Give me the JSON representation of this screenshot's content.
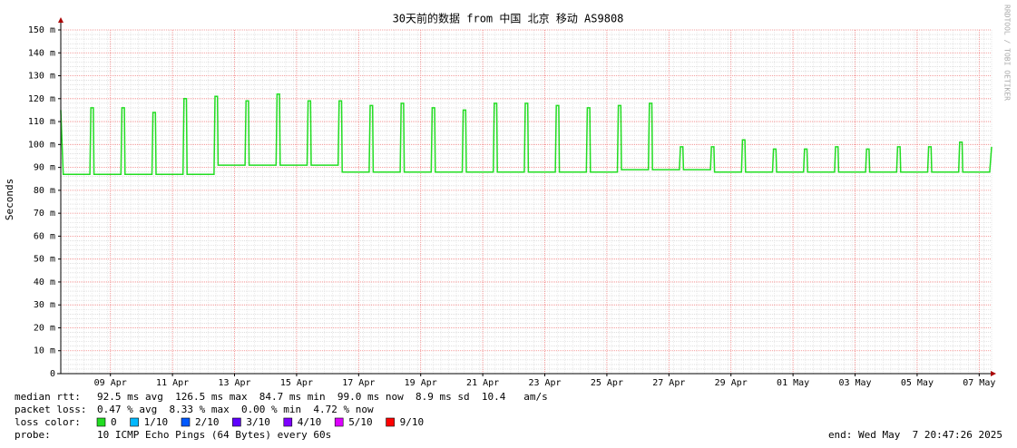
{
  "chart_data": {
    "type": "line",
    "title": "30天前的数据 from 中国 北京 移动 AS9808",
    "y_label": "Seconds",
    "watermark": "RRDTOOL / TOBI OETIKER",
    "xlim": [
      0,
      30
    ],
    "ylim": [
      0,
      0.15
    ],
    "grid": true,
    "yticks": [
      0,
      {
        "value": 0.01,
        "label": "10 m"
      },
      {
        "value": 0.02,
        "label": "20 m"
      },
      {
        "value": 0.03,
        "label": "30 m"
      },
      {
        "value": 0.04,
        "label": "40 m"
      },
      {
        "value": 0.05,
        "label": "50 m"
      },
      {
        "value": 0.06,
        "label": "60 m"
      },
      {
        "value": 0.07,
        "label": "70 m"
      },
      {
        "value": 0.08,
        "label": "80 m"
      },
      {
        "value": 0.09,
        "label": "90 m"
      },
      {
        "value": 0.1,
        "label": "100 m"
      },
      {
        "value": 0.11,
        "label": "110 m"
      },
      {
        "value": 0.12,
        "label": "120 m"
      },
      {
        "value": 0.13,
        "label": "130 m"
      },
      {
        "value": 0.14,
        "label": "140 m"
      },
      {
        "value": 0.15,
        "label": "150 m"
      }
    ],
    "xticks": [
      {
        "value": 1.6,
        "label": "09 Apr"
      },
      {
        "value": 3.6,
        "label": "11 Apr"
      },
      {
        "value": 5.6,
        "label": "13 Apr"
      },
      {
        "value": 7.6,
        "label": "15 Apr"
      },
      {
        "value": 9.6,
        "label": "17 Apr"
      },
      {
        "value": 11.6,
        "label": "19 Apr"
      },
      {
        "value": 13.6,
        "label": "21 Apr"
      },
      {
        "value": 15.6,
        "label": "23 Apr"
      },
      {
        "value": 17.6,
        "label": "25 Apr"
      },
      {
        "value": 19.6,
        "label": "27 Apr"
      },
      {
        "value": 21.6,
        "label": "29 Apr"
      },
      {
        "value": 23.6,
        "label": "01 May"
      },
      {
        "value": 25.6,
        "label": "03 May"
      },
      {
        "value": 27.6,
        "label": "05 May"
      },
      {
        "value": 29.6,
        "label": "07 May"
      }
    ],
    "x": [
      0,
      0.08,
      0.94,
      0.97,
      1.05,
      1.07,
      1.94,
      1.97,
      2.05,
      2.07,
      2.94,
      2.97,
      3.05,
      3.07,
      3.94,
      3.97,
      4.05,
      4.07,
      4.94,
      4.97,
      5.05,
      5.07,
      5.94,
      5.97,
      6.05,
      6.07,
      6.94,
      6.97,
      7.05,
      7.07,
      7.94,
      7.97,
      8.05,
      8.07,
      8.94,
      8.97,
      9.05,
      9.07,
      9.94,
      9.97,
      10.05,
      10.07,
      10.94,
      10.97,
      11.05,
      11.07,
      11.94,
      11.97,
      12.05,
      12.07,
      12.94,
      12.97,
      13.05,
      13.07,
      13.94,
      13.97,
      14.05,
      14.07,
      14.94,
      14.97,
      15.05,
      15.07,
      15.94,
      15.97,
      16.05,
      16.07,
      16.94,
      16.97,
      17.05,
      17.07,
      17.94,
      17.97,
      18.05,
      18.07,
      18.94,
      18.97,
      19.05,
      19.07,
      19.94,
      19.97,
      20.05,
      20.07,
      20.94,
      20.97,
      21.05,
      21.07,
      21.94,
      21.97,
      22.05,
      22.07,
      22.94,
      22.97,
      23.05,
      23.07,
      23.94,
      23.97,
      24.05,
      24.07,
      24.94,
      24.97,
      25.05,
      25.07,
      25.94,
      25.97,
      26.05,
      26.07,
      26.94,
      26.97,
      27.05,
      27.07,
      27.94,
      27.97,
      28.05,
      28.07,
      28.94,
      28.97,
      29.05,
      29.07,
      29.94,
      30
    ],
    "series": [
      {
        "color": "#22dd22",
        "values": [
          0.115,
          0.087,
          0.087,
          0.116,
          0.116,
          0.087,
          0.087,
          0.116,
          0.116,
          0.087,
          0.087,
          0.114,
          0.114,
          0.087,
          0.087,
          0.12,
          0.12,
          0.087,
          0.087,
          0.121,
          0.121,
          0.091,
          0.091,
          0.119,
          0.119,
          0.091,
          0.091,
          0.122,
          0.122,
          0.091,
          0.091,
          0.119,
          0.119,
          0.091,
          0.091,
          0.119,
          0.119,
          0.088,
          0.088,
          0.117,
          0.117,
          0.088,
          0.088,
          0.118,
          0.118,
          0.088,
          0.088,
          0.116,
          0.116,
          0.088,
          0.088,
          0.115,
          0.115,
          0.088,
          0.088,
          0.118,
          0.118,
          0.088,
          0.088,
          0.118,
          0.118,
          0.088,
          0.088,
          0.117,
          0.117,
          0.088,
          0.088,
          0.116,
          0.116,
          0.088,
          0.088,
          0.117,
          0.117,
          0.089,
          0.089,
          0.118,
          0.118,
          0.089,
          0.089,
          0.099,
          0.099,
          0.089,
          0.089,
          0.099,
          0.099,
          0.088,
          0.088,
          0.102,
          0.102,
          0.088,
          0.088,
          0.098,
          0.098,
          0.088,
          0.088,
          0.098,
          0.098,
          0.088,
          0.088,
          0.099,
          0.099,
          0.088,
          0.088,
          0.098,
          0.098,
          0.088,
          0.088,
          0.099,
          0.099,
          0.088,
          0.088,
          0.099,
          0.099,
          0.088,
          0.088,
          0.101,
          0.101,
          0.088,
          0.088,
          0.099
        ]
      }
    ],
    "stats": {
      "median_rtt": {
        "label": "median rtt:",
        "text": "92.5 ms avg  126.5 ms max  84.7 ms min  99.0 ms now  8.9 ms sd  10.4   am/s"
      },
      "packet_loss": {
        "label": "packet loss:",
        "text": "0.47 % avg  8.33 % max  0.00 % min  4.72 % now"
      },
      "loss_color": {
        "label": "loss color:",
        "items": [
          {
            "color": "#22dd22",
            "label": "0"
          },
          {
            "color": "#00b8ff",
            "label": "1/10"
          },
          {
            "color": "#0059ff",
            "label": "2/10"
          },
          {
            "color": "#5e00ff",
            "label": "3/10"
          },
          {
            "color": "#7e00ff",
            "label": "4/10"
          },
          {
            "color": "#dd00ff",
            "label": "5/10"
          },
          {
            "color": "#ff0000",
            "label": "9/10"
          }
        ]
      },
      "probe": {
        "label": "probe:",
        "text": "10 ICMP Echo Pings (64 Bytes) every 60s"
      },
      "end": "end: Wed May  7 20:47:26 2025"
    }
  }
}
